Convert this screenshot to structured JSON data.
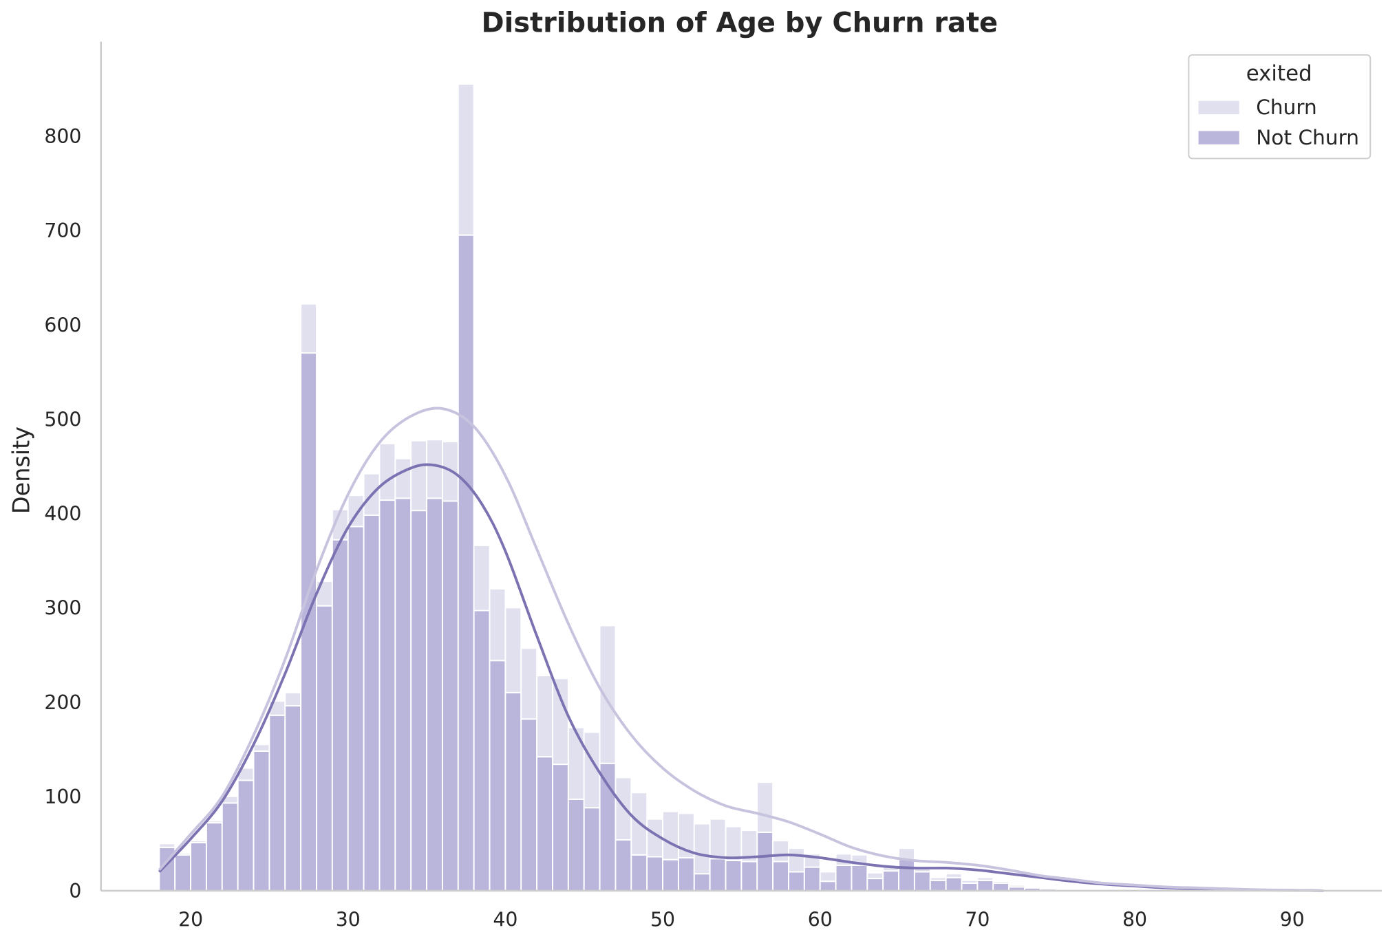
{
  "chart_data": {
    "type": "histogram",
    "title": "Distribution of Age by Churn rate",
    "xlabel": "",
    "ylabel": "Density",
    "xlim": [
      14.3,
      95.7
    ],
    "ylim": [
      0,
      900
    ],
    "x_ticks": [
      20,
      30,
      40,
      50,
      60,
      70,
      80,
      90
    ],
    "y_ticks": [
      0,
      100,
      200,
      300,
      400,
      500,
      600,
      700,
      800
    ],
    "stacked": true,
    "bin_start": 18,
    "bin_width": 1,
    "legend": {
      "title": "exited",
      "position": "upper right",
      "entries": [
        "Churn",
        "Not Churn"
      ]
    },
    "colors": {
      "Churn": "#e1e0ee",
      "Not Churn": "#bab5da",
      "Churn_kde": "#c7c3df",
      "Not Churn_kde": "#7b72b2",
      "axis": "#cccccc",
      "bar_edge": "#ffffff"
    },
    "series": [
      {
        "name": "Not Churn",
        "values": [
          46,
          38,
          51,
          72,
          93,
          117,
          148,
          186,
          196,
          570,
          302,
          372,
          386,
          398,
          414,
          416,
          403,
          416,
          413,
          695,
          297,
          244,
          210,
          182,
          142,
          134,
          97,
          88,
          135,
          54,
          38,
          36,
          33,
          35,
          18,
          34,
          32,
          31,
          62,
          31,
          20,
          25,
          10,
          27,
          27,
          13,
          21,
          33,
          20,
          11,
          14,
          8,
          11,
          8,
          4,
          3,
          2,
          1,
          1,
          1,
          1,
          1,
          1,
          1,
          1,
          1,
          1,
          1,
          1,
          1,
          1,
          1,
          1,
          1
        ]
      },
      {
        "name": "Churn",
        "values": [
          4,
          2,
          2,
          2,
          7,
          13,
          7,
          15,
          14,
          52,
          26,
          32,
          33,
          44,
          60,
          42,
          74,
          62,
          63,
          160,
          69,
          76,
          90,
          75,
          86,
          91,
          76,
          80,
          146,
          66,
          66,
          40,
          51,
          47,
          53,
          42,
          36,
          33,
          53,
          22,
          25,
          14,
          10,
          12,
          11,
          6,
          5,
          12,
          3,
          3,
          4,
          3,
          3,
          2,
          2,
          1,
          1,
          1,
          1,
          1,
          1,
          1,
          1,
          1,
          1,
          1,
          1,
          1,
          1,
          1,
          1,
          1,
          1,
          1
        ]
      }
    ],
    "kde": [
      {
        "name": "Not Churn",
        "points": [
          [
            18,
            20
          ],
          [
            20,
            55
          ],
          [
            22,
            95
          ],
          [
            24,
            155
          ],
          [
            26,
            230
          ],
          [
            28,
            315
          ],
          [
            30,
            385
          ],
          [
            32,
            428
          ],
          [
            34,
            448
          ],
          [
            35.5,
            451
          ],
          [
            37,
            440
          ],
          [
            38.5,
            410
          ],
          [
            40,
            360
          ],
          [
            42,
            270
          ],
          [
            44,
            185
          ],
          [
            46,
            125
          ],
          [
            48,
            80
          ],
          [
            50,
            55
          ],
          [
            52,
            40
          ],
          [
            54,
            35
          ],
          [
            56,
            36
          ],
          [
            58,
            38
          ],
          [
            60,
            35
          ],
          [
            62,
            30
          ],
          [
            64,
            26
          ],
          [
            66,
            24
          ],
          [
            68,
            24
          ],
          [
            70,
            22
          ],
          [
            72,
            18
          ],
          [
            74,
            14
          ],
          [
            76,
            10
          ],
          [
            78,
            7
          ],
          [
            80,
            5
          ],
          [
            82,
            3
          ],
          [
            84,
            2
          ],
          [
            86,
            1
          ],
          [
            90,
            0.5
          ],
          [
            92,
            0
          ]
        ]
      },
      {
        "name": "Churn",
        "points": [
          [
            18,
            22
          ],
          [
            20,
            60
          ],
          [
            22,
            100
          ],
          [
            24,
            165
          ],
          [
            26,
            245
          ],
          [
            28,
            340
          ],
          [
            30,
            420
          ],
          [
            32,
            475
          ],
          [
            34,
            503
          ],
          [
            36,
            511
          ],
          [
            38,
            492
          ],
          [
            40,
            440
          ],
          [
            42,
            362
          ],
          [
            44,
            283
          ],
          [
            46,
            215
          ],
          [
            48,
            165
          ],
          [
            50,
            130
          ],
          [
            52,
            106
          ],
          [
            54,
            90
          ],
          [
            56,
            82
          ],
          [
            58,
            73
          ],
          [
            60,
            60
          ],
          [
            62,
            46
          ],
          [
            64,
            37
          ],
          [
            66,
            32
          ],
          [
            68,
            30
          ],
          [
            70,
            27
          ],
          [
            72,
            22
          ],
          [
            74,
            16
          ],
          [
            76,
            12
          ],
          [
            78,
            8
          ],
          [
            80,
            6
          ],
          [
            82,
            4
          ],
          [
            84,
            3
          ],
          [
            86,
            2
          ],
          [
            88,
            1
          ],
          [
            92,
            0
          ]
        ]
      }
    ]
  }
}
